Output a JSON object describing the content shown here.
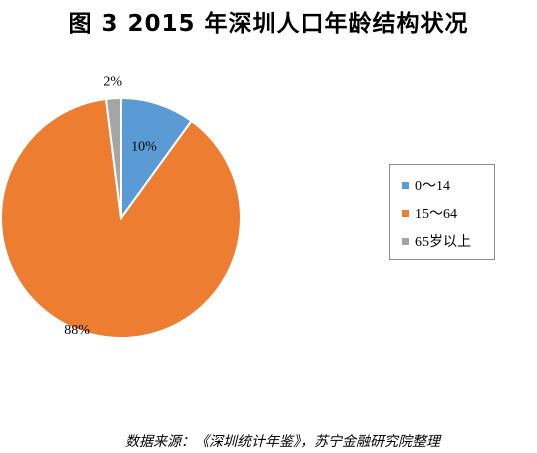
{
  "title": "图 3 2015 年深圳人口年龄结构状况",
  "chart_data": {
    "type": "pie",
    "categories": [
      "0～14",
      "15～64",
      "65岁以上"
    ],
    "values": [
      10,
      88,
      2
    ],
    "data_labels": [
      "10%",
      "88%",
      "2%"
    ],
    "colors": [
      "#5b9bd5",
      "#ed7d31",
      "#a5a5a5"
    ],
    "legend_position": "right"
  },
  "source": "数据来源：《深圳统计年鉴》，苏宁金融研究院整理"
}
